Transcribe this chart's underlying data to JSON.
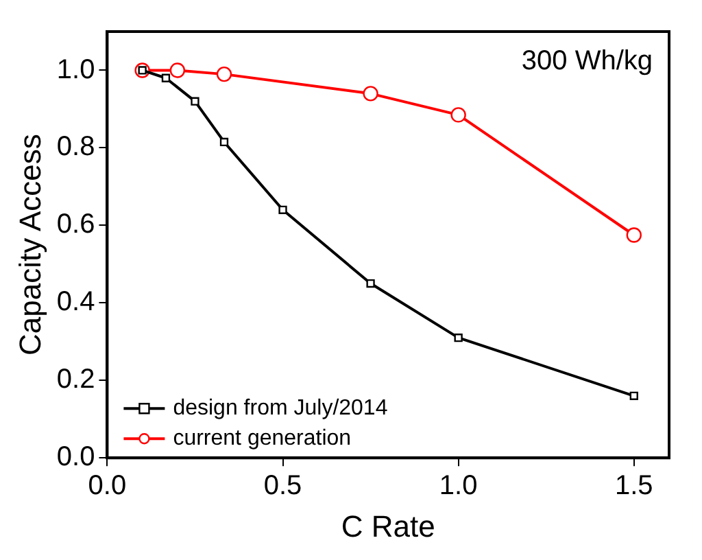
{
  "chart_data": {
    "type": "line",
    "xlabel": "C Rate",
    "ylabel": "Capacity Access",
    "xlim": [
      0,
      1.6
    ],
    "ylim": [
      0,
      1.1
    ],
    "xticks": [
      {
        "value": 0,
        "label": "0.0"
      },
      0.5,
      {
        "value": 1,
        "label": "1.0"
      },
      1.5
    ],
    "yticks": [
      {
        "value": 0,
        "label": "0.0"
      },
      0.2,
      0.4,
      0.6,
      0.8,
      {
        "value": 1,
        "label": "1.0"
      }
    ],
    "grid": false,
    "legend": "bottom left",
    "annotations": [
      "300 Wh/kg"
    ],
    "series": [
      {
        "name": "design from July/2014",
        "color": "#000000",
        "marker": "square",
        "x": [
          0.1,
          0.167,
          0.25,
          0.333,
          0.5,
          0.75,
          1.0,
          1.5
        ],
        "values": [
          1.0,
          0.98,
          0.92,
          0.815,
          0.64,
          0.45,
          0.31,
          0.16
        ]
      },
      {
        "name": "current generation",
        "color": "#ff0000",
        "marker": "circle",
        "x": [
          0.1,
          0.2,
          0.333,
          0.75,
          1.0,
          1.5
        ],
        "values": [
          1.0,
          1.0,
          0.99,
          0.94,
          0.885,
          0.575
        ]
      }
    ]
  }
}
